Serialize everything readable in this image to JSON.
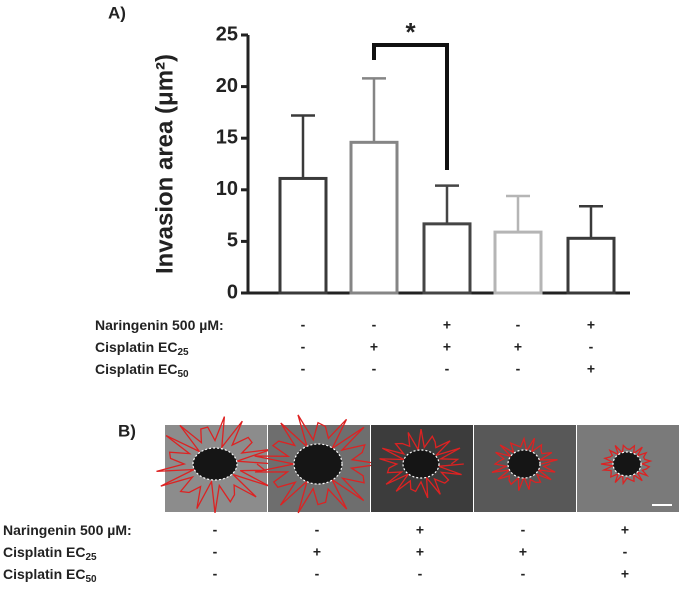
{
  "chart_data": {
    "type": "bar",
    "panel_label": "A)",
    "y_label": "Invasion area (μm²)",
    "values": [
      11.1,
      14.6,
      6.7,
      5.9,
      5.3
    ],
    "errors": [
      6.1,
      6.2,
      3.7,
      3.5,
      3.1
    ],
    "colors": [
      "#3a3a3a",
      "#858585",
      "#454545",
      "#b5b5b5",
      "#3a3a3a"
    ],
    "ylim": [
      0,
      25
    ],
    "yticks": [
      0,
      5,
      10,
      15,
      20,
      25
    ],
    "significance": {
      "label": "*",
      "from": 1,
      "to": 2
    },
    "conditions": [
      {
        "label": "Naringenin 500 µM:",
        "values": [
          "-",
          "-",
          "+",
          "-",
          "+"
        ]
      },
      {
        "label": "Cisplatin EC",
        "sub": "25",
        "values": [
          "-",
          "+",
          "+",
          "+",
          "-"
        ]
      },
      {
        "label": "Cisplatin EC",
        "sub": "50",
        "values": [
          "-",
          "-",
          "-",
          "-",
          "+"
        ]
      }
    ]
  },
  "panel_b": {
    "panel_label": "B)",
    "conditions": [
      {
        "label": "Naringenin 500 µM:",
        "values": [
          "-",
          "-",
          "+",
          "-",
          "+"
        ]
      },
      {
        "label": "Cisplatin EC",
        "sub": "25",
        "values": [
          "-",
          "+",
          "+",
          "+",
          "-"
        ]
      },
      {
        "label": "Cisplatin EC",
        "sub": "50",
        "values": [
          "-",
          "-",
          "-",
          "-",
          "+"
        ]
      }
    ]
  }
}
